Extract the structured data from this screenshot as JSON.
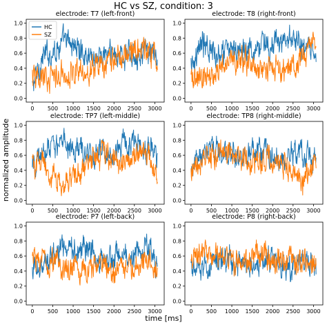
{
  "figure": {
    "title": "HC vs SZ, condition: 3",
    "xlabel": "time [ms]",
    "ylabel": "normalized amplitude"
  },
  "colors": {
    "HC": "#1f77b4",
    "SZ": "#ff7f0e"
  },
  "chart_data": [
    {
      "type": "line",
      "title": "electrode: T7 (left-front)",
      "xlim": [
        -150,
        3230
      ],
      "ylim": [
        -0.05,
        1.05
      ],
      "xticks": [
        0,
        500,
        1000,
        1500,
        2000,
        2500,
        3000
      ],
      "yticks": [
        0.0,
        0.2,
        0.4,
        0.6,
        0.8,
        1.0
      ],
      "legend": {
        "position": "top-left",
        "entries": [
          "HC",
          "SZ"
        ]
      },
      "series": [
        {
          "name": "HC",
          "x": [
            0,
            250,
            500,
            750,
            1000,
            1250,
            1500,
            1750,
            2000,
            2250,
            2500,
            2750,
            3000,
            3070
          ],
          "y": [
            0.15,
            0.55,
            0.62,
            0.75,
            0.72,
            0.6,
            0.55,
            0.58,
            0.6,
            0.55,
            0.62,
            0.6,
            0.55,
            0.5
          ]
        },
        {
          "name": "SZ",
          "x": [
            0,
            250,
            500,
            750,
            1000,
            1250,
            1500,
            1750,
            2000,
            2250,
            2500,
            2750,
            3000,
            3070
          ],
          "y": [
            0.3,
            0.28,
            0.3,
            0.32,
            0.35,
            0.38,
            0.42,
            0.48,
            0.52,
            0.55,
            0.7,
            0.65,
            0.58,
            0.5
          ]
        }
      ]
    },
    {
      "type": "line",
      "title": "electrode: T8 (right-front)",
      "xlim": [
        -150,
        3230
      ],
      "ylim": [
        -0.05,
        1.05
      ],
      "xticks": [
        0,
        500,
        1000,
        1500,
        2000,
        2500,
        3000
      ],
      "yticks": [
        0.0,
        0.2,
        0.4,
        0.6,
        0.8,
        1.0
      ],
      "series": [
        {
          "name": "HC",
          "x": [
            0,
            250,
            500,
            750,
            1000,
            1250,
            1500,
            1750,
            2000,
            2250,
            2500,
            2750,
            3000,
            3070
          ],
          "y": [
            0.5,
            0.72,
            0.65,
            0.6,
            0.62,
            0.7,
            0.65,
            0.72,
            0.68,
            0.75,
            0.78,
            0.65,
            0.6,
            0.48
          ]
        },
        {
          "name": "SZ",
          "x": [
            0,
            250,
            500,
            750,
            1000,
            1250,
            1500,
            1750,
            2000,
            2250,
            2500,
            2750,
            3000,
            3070
          ],
          "y": [
            0.28,
            0.25,
            0.3,
            0.45,
            0.55,
            0.5,
            0.45,
            0.35,
            0.4,
            0.38,
            0.42,
            0.6,
            0.75,
            0.55
          ]
        }
      ]
    },
    {
      "type": "line",
      "title": "electrode: TP7 (left-middle)",
      "xlim": [
        -150,
        3230
      ],
      "ylim": [
        -0.05,
        1.05
      ],
      "xticks": [
        0,
        500,
        1000,
        1500,
        2000,
        2500,
        3000
      ],
      "yticks": [
        0.0,
        0.2,
        0.4,
        0.6,
        0.8,
        1.0
      ],
      "series": [
        {
          "name": "HC",
          "x": [
            0,
            250,
            500,
            750,
            1000,
            1250,
            1500,
            1750,
            2000,
            2250,
            2500,
            2750,
            3000,
            3070
          ],
          "y": [
            0.45,
            0.6,
            0.72,
            0.78,
            0.7,
            0.65,
            0.62,
            0.6,
            0.65,
            0.72,
            0.78,
            0.7,
            0.65,
            0.5
          ]
        },
        {
          "name": "SZ",
          "x": [
            0,
            250,
            500,
            750,
            1000,
            1250,
            1500,
            1750,
            2000,
            2250,
            2500,
            2750,
            3000,
            3070
          ],
          "y": [
            0.5,
            0.45,
            0.3,
            0.2,
            0.3,
            0.4,
            0.55,
            0.6,
            0.55,
            0.5,
            0.6,
            0.65,
            0.45,
            0.4
          ]
        }
      ]
    },
    {
      "type": "line",
      "title": "electrode: TP8 (right-middle)",
      "xlim": [
        -150,
        3230
      ],
      "ylim": [
        -0.05,
        1.05
      ],
      "xticks": [
        0,
        500,
        1000,
        1500,
        2000,
        2500,
        3000
      ],
      "yticks": [
        0.0,
        0.2,
        0.4,
        0.6,
        0.8,
        1.0
      ],
      "series": [
        {
          "name": "HC",
          "x": [
            0,
            250,
            500,
            750,
            1000,
            1250,
            1500,
            1750,
            2000,
            2250,
            2500,
            2750,
            3000,
            3070
          ],
          "y": [
            0.35,
            0.62,
            0.65,
            0.6,
            0.58,
            0.62,
            0.68,
            0.6,
            0.62,
            0.55,
            0.6,
            0.65,
            0.58,
            0.5
          ]
        },
        {
          "name": "SZ",
          "x": [
            0,
            250,
            500,
            750,
            1000,
            1250,
            1500,
            1750,
            2000,
            2250,
            2500,
            2750,
            3000,
            3070
          ],
          "y": [
            0.38,
            0.55,
            0.62,
            0.65,
            0.6,
            0.55,
            0.5,
            0.52,
            0.55,
            0.45,
            0.35,
            0.25,
            0.45,
            0.5
          ]
        }
      ]
    },
    {
      "type": "line",
      "title": "electrode: P7 (left-back)",
      "xlim": [
        -150,
        3230
      ],
      "ylim": [
        -0.05,
        1.05
      ],
      "xticks": [
        0,
        500,
        1000,
        1500,
        2000,
        2500,
        3000
      ],
      "yticks": [
        0.0,
        0.2,
        0.4,
        0.6,
        0.8,
        1.0
      ],
      "series": [
        {
          "name": "HC",
          "x": [
            0,
            250,
            500,
            750,
            1000,
            1250,
            1500,
            1750,
            2000,
            2250,
            2500,
            2750,
            3000,
            3070
          ],
          "y": [
            0.45,
            0.5,
            0.55,
            0.7,
            0.72,
            0.65,
            0.6,
            0.55,
            0.6,
            0.62,
            0.65,
            0.7,
            0.55,
            0.5
          ]
        },
        {
          "name": "SZ",
          "x": [
            0,
            250,
            500,
            750,
            1000,
            1250,
            1500,
            1750,
            2000,
            2250,
            2500,
            2750,
            3000,
            3070
          ],
          "y": [
            0.6,
            0.58,
            0.55,
            0.42,
            0.4,
            0.45,
            0.48,
            0.5,
            0.45,
            0.4,
            0.45,
            0.5,
            0.45,
            0.4
          ]
        }
      ]
    },
    {
      "type": "line",
      "title": "electrode: P8 (right-back)",
      "xlim": [
        -150,
        3230
      ],
      "ylim": [
        -0.05,
        1.05
      ],
      "xticks": [
        0,
        500,
        1000,
        1500,
        2000,
        2500,
        3000
      ],
      "yticks": [
        0.0,
        0.2,
        0.4,
        0.6,
        0.8,
        1.0
      ],
      "series": [
        {
          "name": "HC",
          "x": [
            0,
            250,
            500,
            750,
            1000,
            1250,
            1500,
            1750,
            2000,
            2250,
            2500,
            2750,
            3000,
            3070
          ],
          "y": [
            0.45,
            0.4,
            0.5,
            0.55,
            0.5,
            0.48,
            0.45,
            0.5,
            0.55,
            0.5,
            0.45,
            0.5,
            0.48,
            0.45
          ]
        },
        {
          "name": "SZ",
          "x": [
            0,
            250,
            500,
            750,
            1000,
            1250,
            1500,
            1750,
            2000,
            2250,
            2500,
            2750,
            3000,
            3070
          ],
          "y": [
            0.5,
            0.62,
            0.6,
            0.58,
            0.55,
            0.52,
            0.58,
            0.6,
            0.55,
            0.5,
            0.52,
            0.55,
            0.5,
            0.45
          ]
        }
      ]
    }
  ]
}
